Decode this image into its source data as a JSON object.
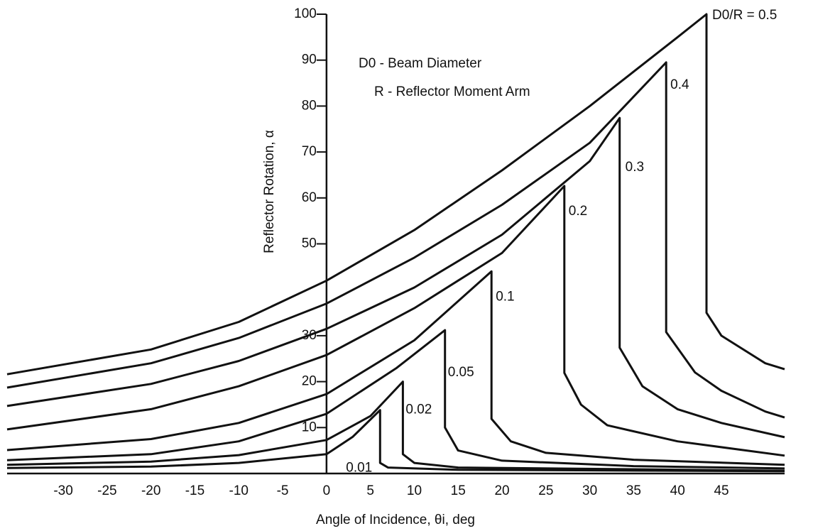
{
  "chart_data": {
    "type": "line",
    "xlabel": "Angle of Incidence, θi, deg",
    "ylabel": "Reflector Rotation, α",
    "annotations": [
      "D0 - Beam Diameter",
      "R - Reflector Moment Arm"
    ],
    "xlim": [
      -36.4,
      52.2
    ],
    "ylim": [
      0,
      100
    ],
    "xticks": [
      -30,
      -25,
      -20,
      -15,
      -10,
      -5,
      0,
      5,
      10,
      15,
      20,
      25,
      30,
      35,
      40,
      45
    ],
    "yticks": [
      10,
      20,
      30,
      50,
      60,
      70,
      80,
      90,
      100
    ],
    "series": [
      {
        "name": "D0/R = 0.5",
        "color": "#111111",
        "x": [
          -36.4,
          -20,
          -10,
          0,
          10,
          20,
          30,
          40,
          43.3,
          43.3,
          45,
          50,
          52.2
        ],
        "values": [
          21.6,
          27,
          33,
          42,
          53,
          66,
          80,
          95,
          100,
          35,
          30,
          24,
          22.7
        ]
      },
      {
        "name": "0.4",
        "color": "#111111",
        "x": [
          -36.4,
          -20,
          -10,
          0,
          10,
          20,
          30,
          38.7,
          38.7,
          42,
          45,
          50,
          52.2
        ],
        "values": [
          18.7,
          24,
          29.5,
          37,
          47,
          58.5,
          72,
          89.5,
          30.8,
          22,
          18,
          13.5,
          12.2
        ]
      },
      {
        "name": "0.3",
        "color": "#111111",
        "x": [
          -36.4,
          -20,
          -10,
          0,
          10,
          20,
          30,
          33.4,
          33.4,
          36,
          40,
          45,
          52.2
        ],
        "values": [
          14.7,
          19.5,
          24.5,
          31.5,
          40.5,
          52,
          68,
          77.4,
          27.4,
          19,
          14,
          11,
          7.9
        ]
      },
      {
        "name": "0.2",
        "color": "#111111",
        "x": [
          -36.4,
          -20,
          -10,
          0,
          10,
          20,
          27.1,
          27.1,
          29,
          32,
          40,
          52.2
        ],
        "values": [
          9.6,
          14,
          19,
          25.8,
          36,
          48,
          62.6,
          21.9,
          15,
          10.5,
          7,
          3.9
        ]
      },
      {
        "name": "0.1",
        "color": "#111111",
        "x": [
          -36.4,
          -20,
          -10,
          0,
          10,
          18.8,
          18.8,
          21,
          25,
          35,
          52.2
        ],
        "values": [
          5.1,
          7.5,
          11,
          17.3,
          29,
          44,
          11.9,
          7,
          4.5,
          3,
          1.9
        ]
      },
      {
        "name": "0.05",
        "color": "#111111",
        "x": [
          -36.4,
          -20,
          -10,
          0,
          8,
          13.5,
          13.5,
          15,
          20,
          35,
          52.2
        ],
        "values": [
          2.9,
          4.2,
          7,
          13,
          23,
          31.2,
          10,
          5,
          2.8,
          1.6,
          1.1
        ]
      },
      {
        "name": "0.02",
        "color": "#111111",
        "x": [
          -36.4,
          -20,
          -10,
          0,
          5,
          8.7,
          8.7,
          10,
          15,
          52.2
        ],
        "values": [
          1.9,
          2.6,
          4,
          7.3,
          12.5,
          20,
          4.2,
          2.3,
          1.3,
          0.6
        ]
      },
      {
        "name": "0.01",
        "color": "#111111",
        "x": [
          -36.4,
          -20,
          -10,
          0,
          3,
          6.1,
          6.1,
          7,
          15,
          52.2
        ],
        "values": [
          1.2,
          1.5,
          2.3,
          4.2,
          8,
          13.8,
          2.3,
          1.3,
          0.8,
          0.5
        ]
      }
    ]
  }
}
